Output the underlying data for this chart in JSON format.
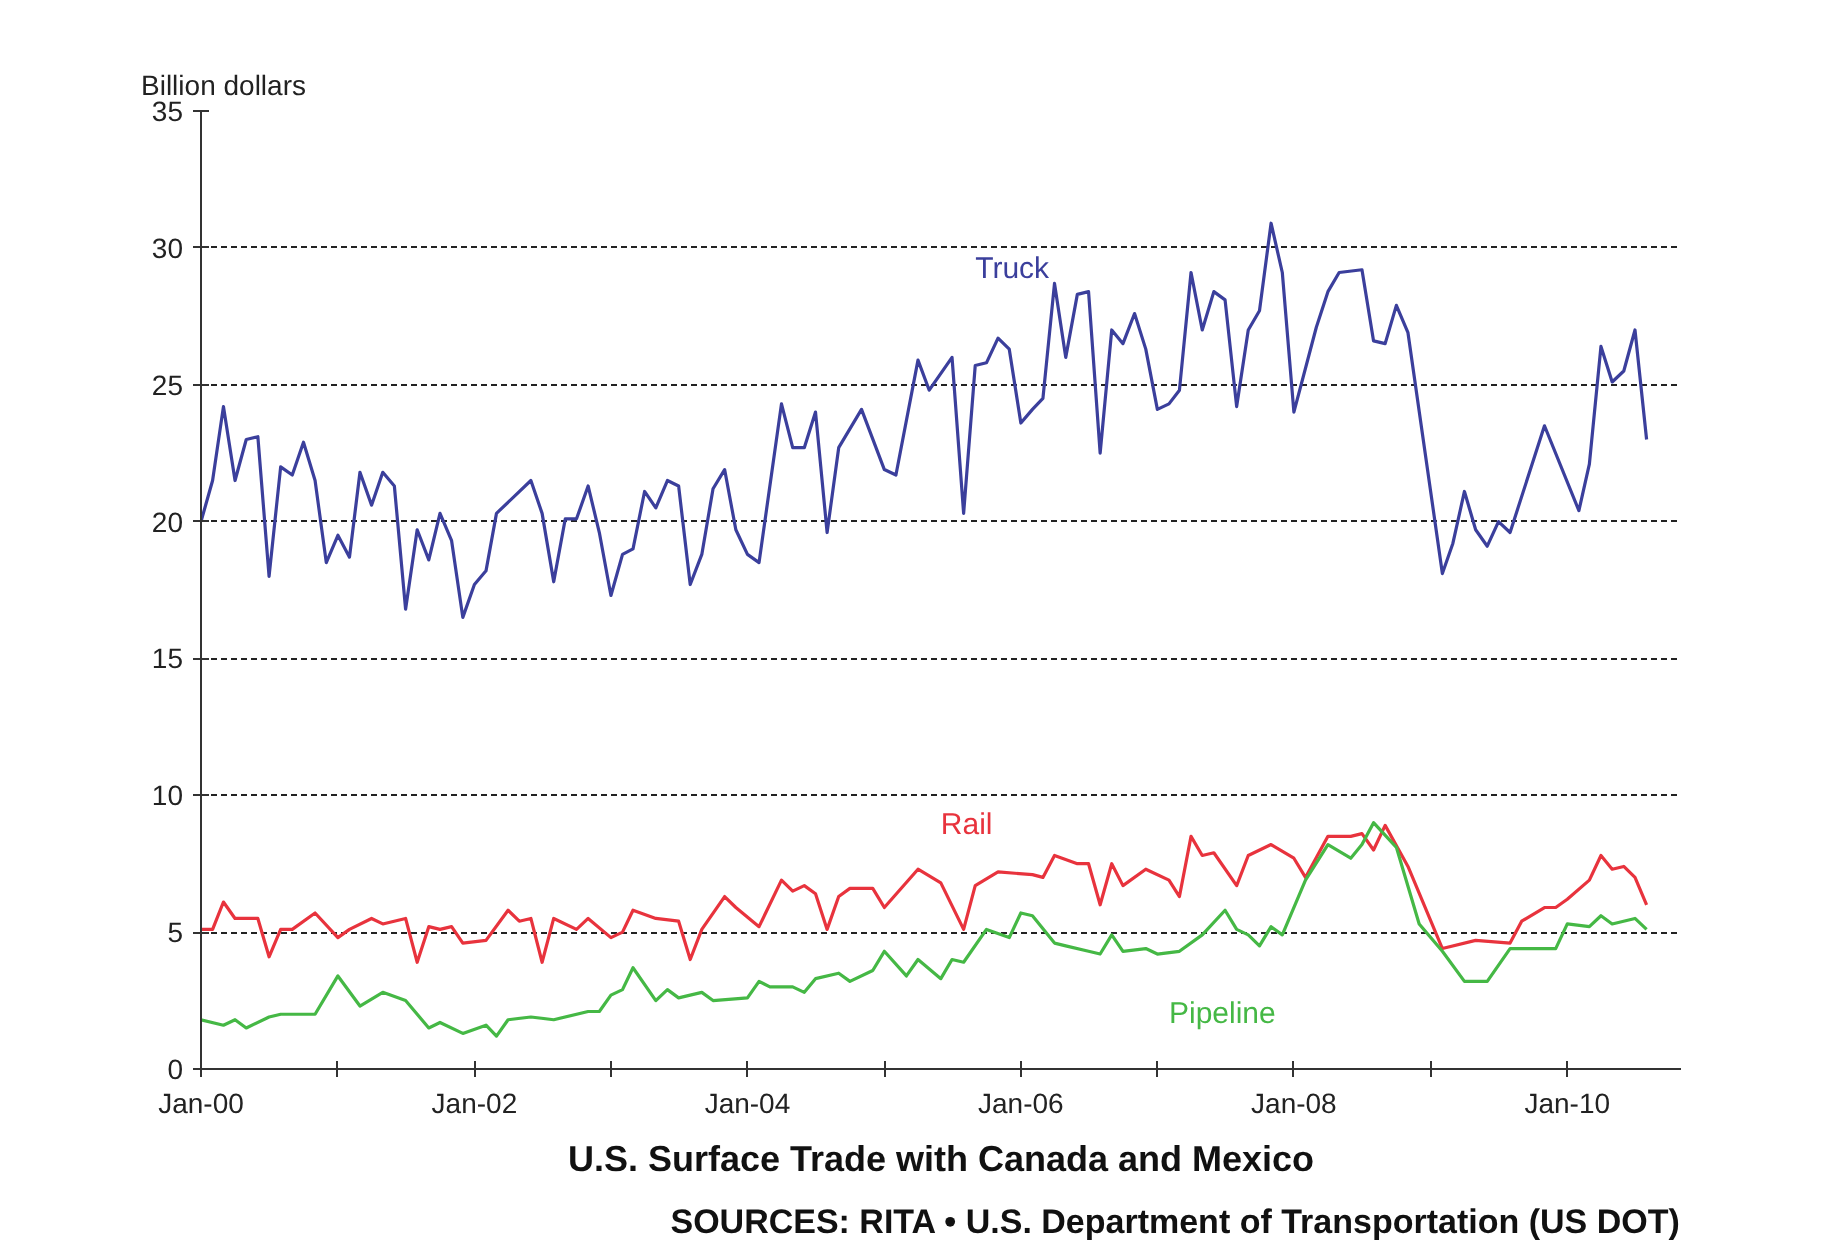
{
  "chart_data": {
    "type": "line",
    "title": "U.S. Surface Trade with Canada and Mexico",
    "ylabel": "Billion dollars",
    "annotations": [
      "SOURCES: RITA • U.S. Department of Transportation (US DOT)"
    ],
    "xlim": [
      "2000-01",
      "2010-11"
    ],
    "xticks": [
      {
        "value": "2000-01",
        "label": "Jan-00"
      },
      {
        "value": "2001-01",
        "label": null
      },
      {
        "value": "2002-01",
        "label": "Jan-02"
      },
      {
        "value": "2003-01",
        "label": null
      },
      {
        "value": "2004-01",
        "label": "Jan-04"
      },
      {
        "value": "2005-01",
        "label": null
      },
      {
        "value": "2006-01",
        "label": "Jan-06"
      },
      {
        "value": "2007-01",
        "label": null
      },
      {
        "value": "2008-01",
        "label": "Jan-08"
      },
      {
        "value": "2009-01",
        "label": null
      },
      {
        "value": "2010-01",
        "label": "Jan-10"
      }
    ],
    "ylim": [
      0,
      35
    ],
    "yticks": [
      0,
      5,
      10,
      15,
      20,
      25,
      30,
      35
    ],
    "grid": "y",
    "legend": false,
    "marker": "none",
    "line_style": "solid",
    "series": [
      {
        "name": "Truck",
        "color": "#3b3f9c",
        "x": [
          "2000-01",
          "2000-02",
          "2000-03",
          "2000-04",
          "2000-05",
          "2000-06",
          "2000-07",
          "2000-08",
          "2000-09",
          "2000-10",
          "2000-11",
          "2000-12",
          "2001-01",
          "2001-02",
          "2001-03",
          "2001-04",
          "2001-05",
          "2001-06",
          "2001-07",
          "2001-08",
          "2001-09",
          "2001-10",
          "2001-11",
          "2001-12",
          "2002-01",
          "2002-02",
          "2002-03",
          "2002-06",
          "2002-07",
          "2002-08",
          "2002-09",
          "2002-10",
          "2002-11",
          "2002-12",
          "2003-01",
          "2003-02",
          "2003-03",
          "2003-04",
          "2003-05",
          "2003-06",
          "2003-07",
          "2003-08",
          "2003-09",
          "2003-10",
          "2003-11",
          "2003-12",
          "2004-01",
          "2004-02",
          "2004-04",
          "2004-05",
          "2004-06",
          "2004-07",
          "2004-08",
          "2004-09",
          "2004-11",
          "2005-01",
          "2005-02",
          "2005-04",
          "2005-05",
          "2005-07",
          "2005-08",
          "2005-09",
          "2005-10",
          "2005-11",
          "2005-12",
          "2006-01",
          "2006-02",
          "2006-03",
          "2006-04",
          "2006-05",
          "2006-06",
          "2006-07",
          "2006-08",
          "2006-09",
          "2006-10",
          "2006-11",
          "2006-12",
          "2007-01",
          "2007-02",
          "2007-03",
          "2007-04",
          "2007-05",
          "2007-06",
          "2007-07",
          "2007-08",
          "2007-09",
          "2007-10",
          "2007-11",
          "2007-12",
          "2008-01",
          "2008-03",
          "2008-04",
          "2008-05",
          "2008-07",
          "2008-08",
          "2008-09",
          "2008-10",
          "2008-11",
          "2009-02",
          "2009-03",
          "2009-04",
          "2009-05",
          "2009-06",
          "2009-07",
          "2009-08",
          "2009-11",
          "2010-02",
          "2010-03",
          "2010-04",
          "2010-05",
          "2010-06",
          "2010-07",
          "2010-08"
        ],
        "values": [
          20.0,
          21.5,
          24.2,
          21.5,
          23.0,
          23.1,
          18.0,
          22.0,
          21.7,
          22.9,
          21.5,
          18.5,
          19.5,
          18.7,
          21.8,
          20.6,
          21.8,
          21.3,
          16.8,
          19.7,
          18.6,
          20.3,
          19.3,
          16.5,
          17.7,
          18.2,
          20.3,
          21.5,
          20.3,
          17.8,
          20.1,
          20.1,
          21.3,
          19.6,
          17.3,
          18.8,
          19.0,
          21.1,
          20.5,
          21.5,
          21.3,
          17.7,
          18.8,
          21.2,
          21.9,
          19.7,
          18.8,
          18.5,
          24.3,
          22.7,
          22.7,
          24.0,
          19.6,
          22.7,
          24.1,
          21.9,
          21.7,
          25.9,
          24.8,
          26.0,
          20.3,
          25.7,
          25.8,
          26.7,
          26.3,
          23.6,
          24.1,
          24.5,
          28.7,
          26.0,
          28.3,
          28.4,
          22.5,
          27.0,
          26.5,
          27.6,
          26.3,
          24.1,
          24.3,
          24.8,
          29.1,
          27.0,
          28.4,
          28.1,
          24.2,
          27.0,
          27.7,
          30.9,
          29.1,
          24.0,
          27.1,
          28.4,
          29.1,
          29.2,
          26.6,
          26.5,
          27.9,
          26.9,
          18.1,
          19.2,
          21.1,
          19.7,
          19.1,
          20.0,
          19.6,
          23.5,
          20.4,
          22.1,
          26.4,
          25.1,
          25.5,
          27.0,
          23.0
        ]
      },
      {
        "name": "Rail",
        "color": "#e8333d",
        "x": [
          "2000-01",
          "2000-02",
          "2000-03",
          "2000-04",
          "2000-06",
          "2000-07",
          "2000-08",
          "2000-09",
          "2000-11",
          "2001-01",
          "2001-02",
          "2001-04",
          "2001-05",
          "2001-07",
          "2001-08",
          "2001-09",
          "2001-10",
          "2001-11",
          "2001-12",
          "2002-02",
          "2002-04",
          "2002-05",
          "2002-06",
          "2002-07",
          "2002-08",
          "2002-10",
          "2002-11",
          "2003-01",
          "2003-02",
          "2003-03",
          "2003-05",
          "2003-07",
          "2003-08",
          "2003-09",
          "2003-11",
          "2003-12",
          "2004-02",
          "2004-04",
          "2004-05",
          "2004-06",
          "2004-07",
          "2004-08",
          "2004-09",
          "2004-10",
          "2004-12",
          "2005-01",
          "2005-04",
          "2005-06",
          "2005-08",
          "2005-09",
          "2005-11",
          "2006-02",
          "2006-03",
          "2006-04",
          "2006-06",
          "2006-07",
          "2006-08",
          "2006-09",
          "2006-10",
          "2006-12",
          "2007-02",
          "2007-03",
          "2007-04",
          "2007-05",
          "2007-06",
          "2007-08",
          "2007-09",
          "2007-11",
          "2008-01",
          "2008-02",
          "2008-04",
          "2008-06",
          "2008-07",
          "2008-08",
          "2008-09",
          "2008-11",
          "2009-02",
          "2009-05",
          "2009-08",
          "2009-09",
          "2009-11",
          "2009-12",
          "2010-01",
          "2010-03",
          "2010-04",
          "2010-05",
          "2010-06",
          "2010-07",
          "2010-08"
        ],
        "values": [
          5.1,
          5.1,
          6.1,
          5.5,
          5.5,
          4.1,
          5.1,
          5.1,
          5.7,
          4.8,
          5.1,
          5.5,
          5.3,
          5.5,
          3.9,
          5.2,
          5.1,
          5.2,
          4.6,
          4.7,
          5.8,
          5.4,
          5.5,
          3.9,
          5.5,
          5.1,
          5.5,
          4.8,
          5.0,
          5.8,
          5.5,
          5.4,
          4.0,
          5.1,
          6.3,
          5.9,
          5.2,
          6.9,
          6.5,
          6.7,
          6.4,
          5.1,
          6.3,
          6.6,
          6.6,
          5.9,
          7.3,
          6.8,
          5.1,
          6.7,
          7.2,
          7.1,
          7.0,
          7.8,
          7.5,
          7.5,
          6.0,
          7.5,
          6.7,
          7.3,
          6.9,
          6.3,
          8.5,
          7.8,
          7.9,
          6.7,
          7.8,
          8.2,
          7.7,
          7.0,
          8.5,
          8.5,
          8.6,
          8.0,
          8.9,
          7.4,
          4.4,
          4.7,
          4.6,
          5.4,
          5.9,
          5.9,
          6.2,
          6.9,
          7.8,
          7.3,
          7.4,
          7.0,
          6.0
        ]
      },
      {
        "name": "Pipeline",
        "color": "#45b845",
        "x": [
          "2000-01",
          "2000-03",
          "2000-04",
          "2000-05",
          "2000-07",
          "2000-08",
          "2000-11",
          "2001-01",
          "2001-03",
          "2001-05",
          "2001-07",
          "2001-09",
          "2001-10",
          "2001-12",
          "2002-02",
          "2002-03",
          "2002-04",
          "2002-06",
          "2002-08",
          "2002-11",
          "2002-12",
          "2003-01",
          "2003-02",
          "2003-03",
          "2003-05",
          "2003-06",
          "2003-07",
          "2003-09",
          "2003-10",
          "2004-01",
          "2004-02",
          "2004-03",
          "2004-05",
          "2004-06",
          "2004-07",
          "2004-09",
          "2004-10",
          "2004-12",
          "2005-01",
          "2005-03",
          "2005-04",
          "2005-06",
          "2005-07",
          "2005-08",
          "2005-10",
          "2005-12",
          "2006-01",
          "2006-02",
          "2006-04",
          "2006-05",
          "2006-07",
          "2006-08",
          "2006-09",
          "2006-10",
          "2006-12",
          "2007-01",
          "2007-03",
          "2007-05",
          "2007-07",
          "2007-08",
          "2007-09",
          "2007-10",
          "2007-11",
          "2007-12",
          "2008-02",
          "2008-04",
          "2008-06",
          "2008-07",
          "2008-08",
          "2008-10",
          "2008-12",
          "2009-02",
          "2009-04",
          "2009-06",
          "2009-08",
          "2009-12",
          "2010-01",
          "2010-03",
          "2010-04",
          "2010-05",
          "2010-07",
          "2010-08"
        ],
        "values": [
          1.8,
          1.6,
          1.8,
          1.5,
          1.9,
          2.0,
          2.0,
          3.4,
          2.3,
          2.8,
          2.5,
          1.5,
          1.7,
          1.3,
          1.6,
          1.2,
          1.8,
          1.9,
          1.8,
          2.1,
          2.1,
          2.7,
          2.9,
          3.7,
          2.5,
          2.9,
          2.6,
          2.8,
          2.5,
          2.6,
          3.2,
          3.0,
          3.0,
          2.8,
          3.3,
          3.5,
          3.2,
          3.6,
          4.3,
          3.4,
          4.0,
          3.3,
          4.0,
          3.9,
          5.1,
          4.8,
          5.7,
          5.6,
          4.6,
          4.5,
          4.3,
          4.2,
          4.9,
          4.3,
          4.4,
          4.2,
          4.3,
          4.9,
          5.8,
          5.1,
          4.9,
          4.5,
          5.2,
          4.9,
          6.9,
          8.2,
          7.7,
          8.2,
          9.0,
          8.1,
          5.3,
          4.3,
          3.2,
          3.2,
          4.4,
          4.4,
          5.3,
          5.2,
          5.6,
          5.3,
          5.5,
          5.1
        ]
      }
    ]
  }
}
